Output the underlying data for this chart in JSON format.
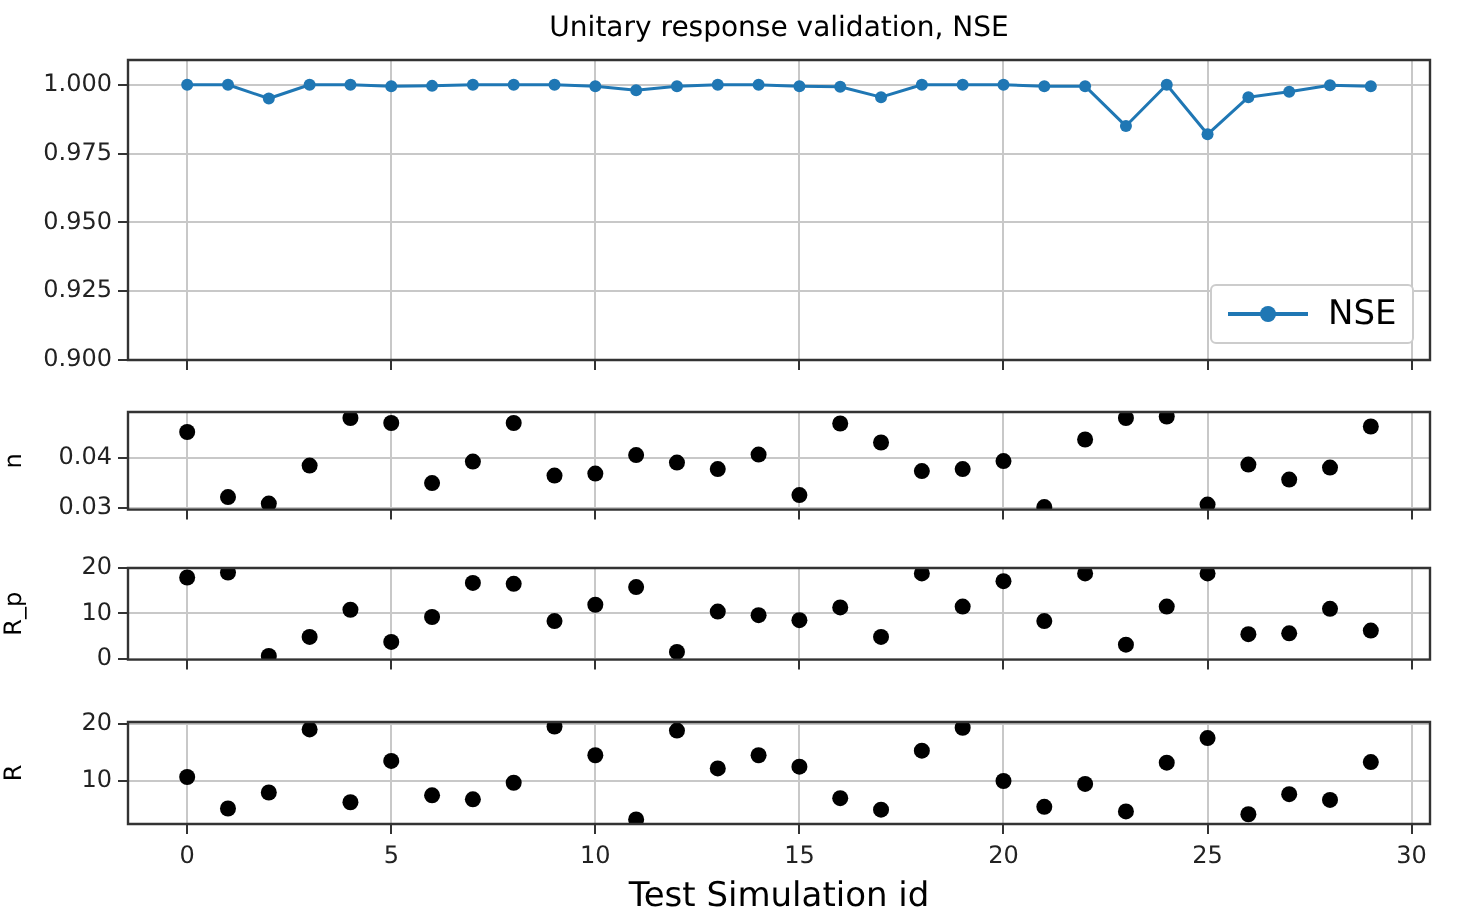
{
  "chart_data": [
    {
      "type": "line",
      "title": "Unitary response validation, NSE",
      "x": [
        0,
        1,
        2,
        3,
        4,
        5,
        6,
        7,
        8,
        9,
        10,
        11,
        12,
        13,
        14,
        15,
        16,
        17,
        18,
        19,
        20,
        21,
        22,
        23,
        24,
        25,
        26,
        27,
        28,
        29
      ],
      "series": [
        {
          "name": "NSE",
          "color": "#1f77b4",
          "values": [
            1.0,
            1.0,
            0.995,
            1.0,
            1.0,
            0.9995,
            0.9996,
            1.0,
            1.0,
            1.0,
            0.9995,
            0.998,
            0.9995,
            1.0,
            1.0,
            0.9995,
            0.9993,
            0.9955,
            1.0,
            1.0,
            1.0,
            0.9995,
            0.9995,
            0.985,
            1.0,
            0.982,
            0.9955,
            0.9975,
            0.9998,
            0.9995
          ]
        }
      ],
      "xlim": [
        -1.45,
        30.45
      ],
      "xticks": [
        0,
        5,
        10,
        15,
        20,
        25,
        30
      ],
      "ylim": [
        0.9,
        1.009
      ],
      "yticks": [
        {
          "value": 0.9,
          "label": "0.900"
        },
        0.925,
        {
          "value": 0.95,
          "label": "0.950"
        },
        0.975,
        {
          "value": 1,
          "label": "1.000"
        }
      ],
      "grid": true,
      "legend": "bottom right",
      "marker": "circle",
      "line_style": "solid",
      "tick_labels": "y"
    },
    {
      "type": "scatter",
      "ylabel": "n",
      "x": [
        0,
        1,
        2,
        3,
        4,
        5,
        6,
        7,
        8,
        9,
        10,
        11,
        12,
        13,
        14,
        15,
        16,
        17,
        18,
        19,
        20,
        21,
        22,
        23,
        24,
        25,
        26,
        27,
        28,
        29
      ],
      "series": [
        {
          "color": "#000000",
          "values": [
            0.0452,
            0.0322,
            0.0309,
            0.0385,
            0.048,
            0.047,
            0.035,
            0.0393,
            0.047,
            0.0365,
            0.0369,
            0.0406,
            0.0391,
            0.0378,
            0.0407,
            0.0326,
            0.0469,
            0.0431,
            0.0374,
            0.0378,
            0.0394,
            0.0302,
            0.0437,
            0.048,
            0.0483,
            0.0307,
            0.0387,
            0.0357,
            0.0381,
            0.0463
          ]
        }
      ],
      "xlim": [
        -1.45,
        30.45
      ],
      "xticks": [
        0,
        5,
        10,
        15,
        20,
        25,
        30
      ],
      "ylim": [
        0.0297,
        0.0492
      ],
      "yticks": [
        0.03,
        0.04
      ],
      "grid": true,
      "marker": "circle",
      "tick_labels": "y"
    },
    {
      "type": "scatter",
      "ylabel": "R_p",
      "x": [
        0,
        1,
        2,
        3,
        4,
        5,
        6,
        7,
        8,
        9,
        10,
        11,
        12,
        13,
        14,
        15,
        16,
        17,
        18,
        19,
        20,
        21,
        22,
        23,
        24,
        25,
        26,
        27,
        28,
        29
      ],
      "series": [
        {
          "color": "#000000",
          "values": [
            17.9,
            19.0,
            0.6,
            4.8,
            10.8,
            3.7,
            9.2,
            16.7,
            16.5,
            8.3,
            11.9,
            15.8,
            1.5,
            10.4,
            9.6,
            8.5,
            11.3,
            4.8,
            18.8,
            11.5,
            17.1,
            8.3,
            18.8,
            3.1,
            11.5,
            18.8,
            5.4,
            5.6,
            11.0,
            6.2
          ]
        }
      ],
      "xlim": [
        -1.45,
        30.45
      ],
      "xticks": [
        0,
        5,
        10,
        15,
        20,
        25,
        30
      ],
      "ylim": [
        -0.2,
        20
      ],
      "yticks": [
        0,
        10,
        20
      ],
      "grid": true,
      "marker": "circle",
      "tick_labels": "y"
    },
    {
      "type": "scatter",
      "ylabel": "R",
      "xlabel": "Test Simulation id",
      "x": [
        0,
        1,
        2,
        3,
        4,
        5,
        6,
        7,
        8,
        9,
        10,
        11,
        12,
        13,
        14,
        15,
        16,
        17,
        18,
        19,
        20,
        21,
        22,
        23,
        24,
        25,
        26,
        27,
        28,
        29
      ],
      "series": [
        {
          "color": "#000000",
          "values": [
            10.7,
            5.2,
            8.0,
            19.0,
            6.3,
            13.5,
            7.5,
            6.8,
            9.7,
            19.5,
            14.5,
            3.3,
            18.8,
            12.2,
            14.5,
            12.5,
            7.0,
            5.0,
            15.3,
            19.3,
            10.0,
            5.5,
            9.5,
            4.7,
            13.2,
            17.5,
            4.2,
            7.7,
            6.7,
            13.3
          ]
        }
      ],
      "xlim": [
        -1.45,
        30.45
      ],
      "xticks": [
        0,
        5,
        10,
        15,
        20,
        25,
        30
      ],
      "ylim": [
        2.5,
        20.3
      ],
      "yticks": [
        10,
        20
      ],
      "grid": true,
      "marker": "circle"
    }
  ]
}
